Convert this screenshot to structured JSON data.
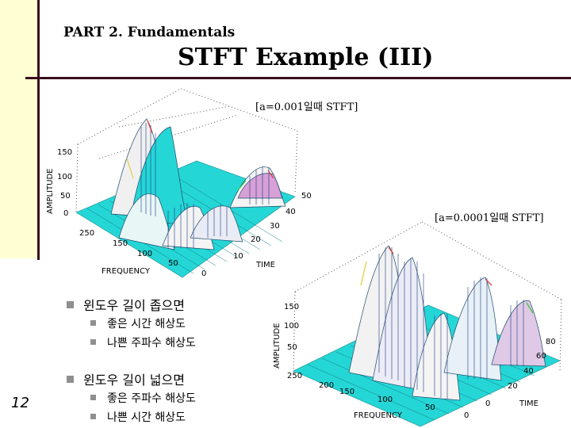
{
  "header": {
    "part": "PART 2. Fundamentals",
    "title": "STFT Example (III)"
  },
  "captions": {
    "plot1": "[a=0.001일때 STFT]",
    "plot2": "[a=0.0001일때 STFT]"
  },
  "plot1": {
    "amplitude_label": "AMPLITUDE",
    "frequency_label": "FREQUENCY",
    "time_label": "TIME",
    "z_ticks": [
      "150",
      "100",
      "50",
      "0"
    ],
    "freq_ticks": [
      "250",
      "150",
      "100",
      "50",
      "0"
    ],
    "time_ticks": [
      "50",
      "40",
      "30",
      "20",
      "10"
    ]
  },
  "plot2": {
    "amplitude_label": "AMPLITUDE",
    "frequency_label": "FREQUENCY",
    "time_label": "TIME",
    "z_ticks": [
      "150",
      "100",
      "50"
    ],
    "freq_ticks": [
      "250",
      "200",
      "150",
      "100",
      "50",
      "0"
    ],
    "time_ticks": [
      "80",
      "60",
      "40",
      "20",
      "0"
    ]
  },
  "bullets": [
    {
      "text": "윈도우 길이 좁으면",
      "sub": [
        "좋은 시간 해상도",
        "나쁜 주파수 해상도"
      ]
    },
    {
      "text": "윈도우 길이 넓으면",
      "sub": [
        "좋은 주파수 해상도",
        "나쁜 시간 해상도"
      ]
    }
  ],
  "page_number": "12",
  "colors": {
    "accent_line": "#3a0f1e",
    "left_bar": "#ffffd2",
    "surface": "#25d6d6"
  }
}
